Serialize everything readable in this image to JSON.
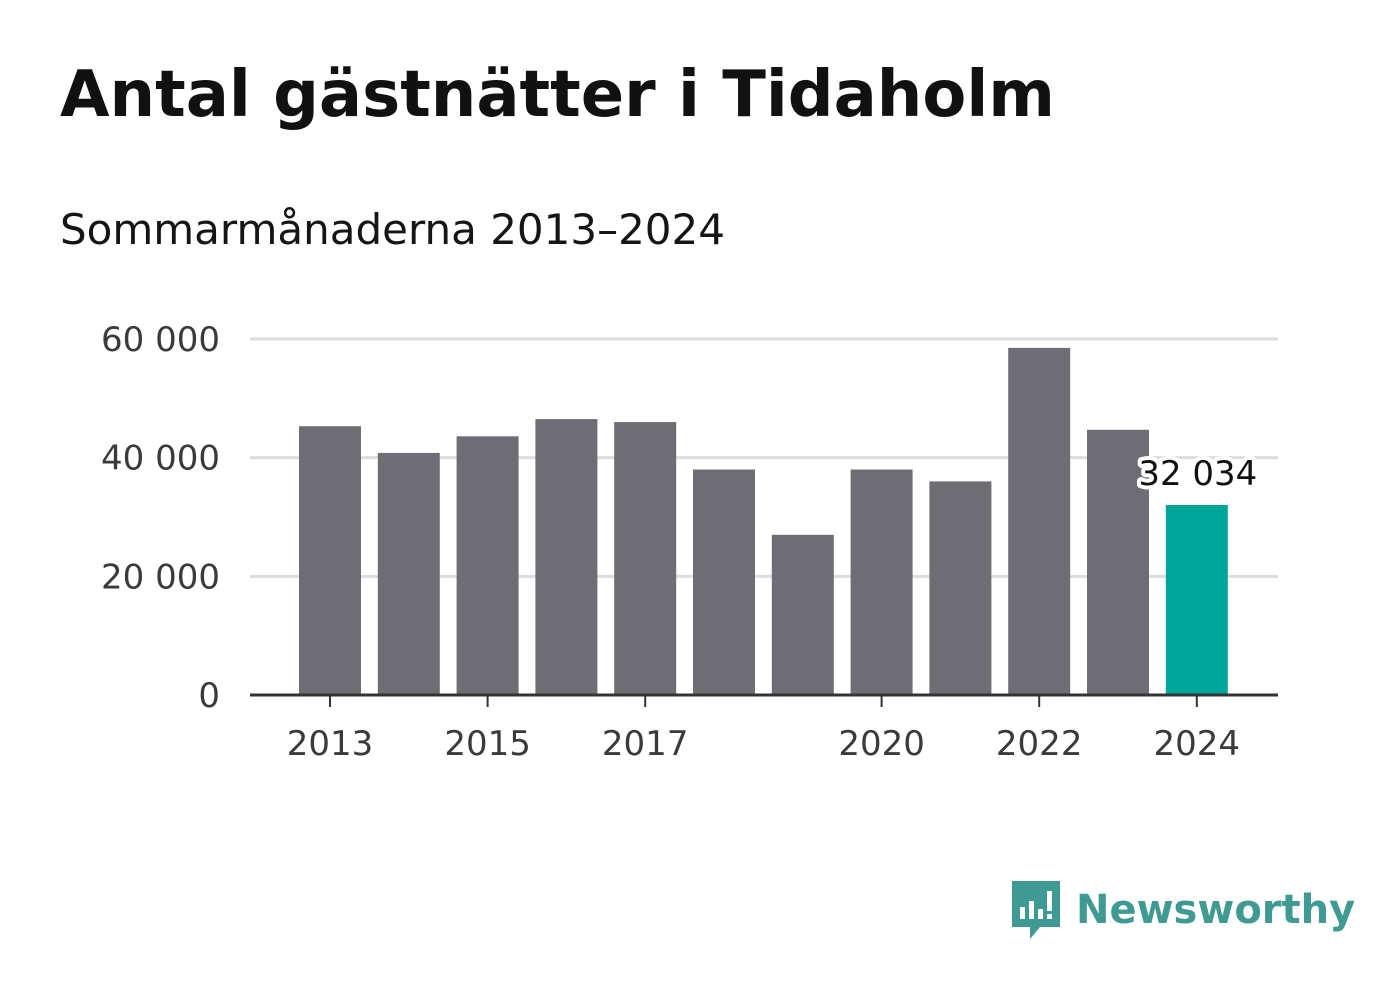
{
  "title": "Antal gästnätter i Tidaholm",
  "subtitle": "Sommarmånaderna 2013–2024",
  "brand": {
    "name": "Newsworthy",
    "icon": "newsworthy-logo-icon",
    "color": "#3f9a93"
  },
  "chart_data": {
    "type": "bar",
    "title": "Antal gästnätter i Tidaholm",
    "subtitle": "Sommarmånaderna 2013–2024",
    "xlabel": "",
    "ylabel": "",
    "categories": [
      "2013",
      "2014",
      "2015",
      "2016",
      "2017",
      "2018",
      "2019",
      "2020",
      "2021",
      "2022",
      "2023",
      "2024"
    ],
    "values": [
      45300,
      40800,
      43600,
      46500,
      46000,
      38000,
      27000,
      38000,
      36000,
      58500,
      44700,
      32034
    ],
    "x_tick_labels": [
      "2013",
      "2015",
      "2017",
      "2020",
      "2022",
      "2024"
    ],
    "y_ticks": [
      0,
      20000,
      40000,
      60000
    ],
    "y_tick_labels": [
      "0",
      "20 000",
      "40 000",
      "60 000"
    ],
    "ylim": [
      0,
      60000
    ],
    "grid": "horizontal",
    "highlight": {
      "category": "2024",
      "value_label": "32 034"
    },
    "colors": {
      "bar": "#6e6d73",
      "highlight": "#00a59a",
      "grid": "#dddddd",
      "axis": "#333333"
    }
  }
}
